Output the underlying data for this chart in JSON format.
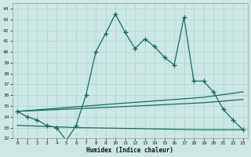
{
  "xlabel": "Humidex (Indice chaleur)",
  "bg_color": "#cbe8e4",
  "grid_color": "#b0d8d4",
  "line_color": "#1a6b60",
  "xlim": [
    -0.5,
    23.5
  ],
  "ylim": [
    32,
    44.5
  ],
  "yticks": [
    32,
    33,
    34,
    35,
    36,
    37,
    38,
    39,
    40,
    41,
    42,
    43,
    44
  ],
  "xticks": [
    0,
    1,
    2,
    3,
    4,
    5,
    6,
    7,
    8,
    9,
    10,
    11,
    12,
    13,
    14,
    15,
    16,
    17,
    18,
    19,
    20,
    21,
    22,
    23
  ],
  "series1_x": [
    0,
    1,
    2,
    3,
    4,
    5,
    6,
    7,
    8,
    9,
    10,
    11,
    12,
    13,
    14,
    15,
    16,
    17,
    18,
    19,
    20,
    21,
    22,
    23
  ],
  "series1_y": [
    34.5,
    34.0,
    33.7,
    33.2,
    33.0,
    31.8,
    33.2,
    36.0,
    40.0,
    41.7,
    43.5,
    41.8,
    40.3,
    41.2,
    40.5,
    39.5,
    38.8,
    43.2,
    37.3,
    37.3,
    36.3,
    34.7,
    33.7,
    32.8
  ],
  "series2_x": [
    0,
    10,
    19,
    23
  ],
  "series2_y": [
    34.5,
    35.2,
    35.8,
    36.3
  ],
  "series3_x": [
    0,
    10,
    19,
    23
  ],
  "series3_y": [
    34.5,
    34.9,
    35.3,
    35.6
  ],
  "series4_x": [
    0,
    6,
    19,
    23
  ],
  "series4_y": [
    33.2,
    33.0,
    32.8,
    32.8
  ]
}
